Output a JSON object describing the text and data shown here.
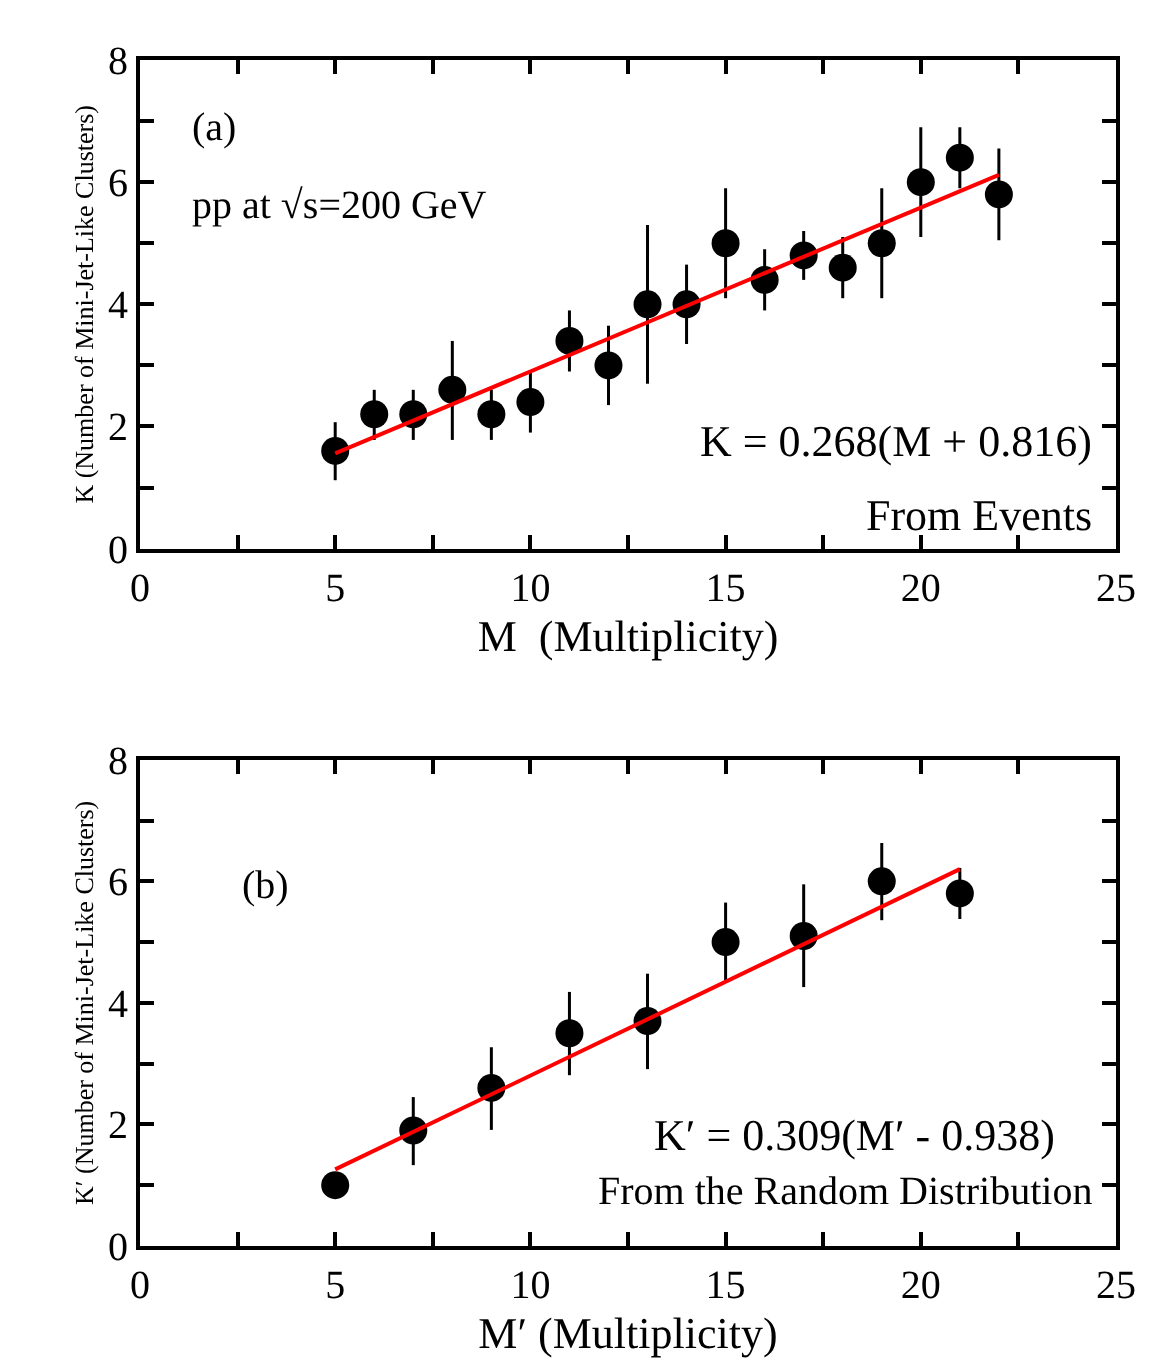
{
  "chart_data": [
    {
      "type": "scatter",
      "xlabel": "M  (Multiplicity)",
      "ylabel": "K (Number of Mini-Jet-Like Clusters)",
      "annotations": [
        "(a)",
        "pp at √s=200 GeV",
        "K = 0.268(M + 0.816)",
        "From Events"
      ],
      "xlim": [
        0,
        25
      ],
      "xticks": [
        0,
        {
          "value": 2.5,
          "label": null
        },
        5,
        {
          "value": 7.5,
          "label": null
        },
        10,
        {
          "value": 12.5,
          "label": null
        },
        15,
        {
          "value": 17.5,
          "label": null
        },
        20,
        {
          "value": 22.5,
          "label": null
        },
        25
      ],
      "ylim": [
        0,
        8
      ],
      "yticks": [
        0,
        {
          "value": 1,
          "label": null
        },
        2,
        {
          "value": 3,
          "label": null
        },
        4,
        {
          "value": 5,
          "label": null
        },
        6,
        {
          "value": 7,
          "label": null
        },
        8
      ],
      "marker": "circle",
      "series": [
        {
          "color": "#000000",
          "x": [
            5,
            6,
            7,
            8,
            9,
            10,
            11,
            12,
            13,
            14,
            15,
            16,
            17,
            18,
            19,
            20,
            21,
            22
          ],
          "values": [
            1.6,
            2.2,
            2.2,
            2.6,
            2.2,
            2.4,
            3.4,
            3.0,
            4.0,
            4.0,
            5.0,
            4.4,
            4.8,
            4.6,
            5.0,
            6.0,
            6.4,
            5.8
          ],
          "errors": [
            [
              1.12,
              2.07
            ],
            [
              1.78,
              2.6
            ],
            [
              1.78,
              2.6
            ],
            [
              1.78,
              3.4
            ],
            [
              1.78,
              2.6
            ],
            [
              1.9,
              2.9
            ],
            [
              2.9,
              3.9
            ],
            [
              2.35,
              3.65
            ],
            [
              2.7,
              5.3
            ],
            [
              3.35,
              4.65
            ],
            [
              4.1,
              5.9
            ],
            [
              3.9,
              4.9
            ],
            [
              4.4,
              5.2
            ],
            [
              4.1,
              5.1
            ],
            [
              4.1,
              5.9
            ],
            [
              5.1,
              6.9
            ],
            [
              5.9,
              6.9
            ],
            [
              5.05,
              6.55
            ]
          ]
        },
        {
          "type": "line",
          "color": "#ff0000",
          "marker": "none",
          "line_style": "solid",
          "x": [
            5,
            22
          ],
          "values": [
            1.56,
            6.12
          ]
        }
      ]
    },
    {
      "type": "scatter",
      "xlabel": "M′ (Multiplicity)",
      "ylabel": "K′ (Number of Mini-Jet-Like Clusters)",
      "annotations": [
        "(b)",
        "K′ = 0.309(M′ - 0.938)",
        "From the Random Distribution"
      ],
      "xlim": [
        0,
        25
      ],
      "xticks": [
        0,
        {
          "value": 2.5,
          "label": null
        },
        5,
        {
          "value": 7.5,
          "label": null
        },
        10,
        {
          "value": 12.5,
          "label": null
        },
        15,
        {
          "value": 17.5,
          "label": null
        },
        20,
        {
          "value": 22.5,
          "label": null
        },
        25
      ],
      "ylim": [
        0,
        8
      ],
      "yticks": [
        0,
        {
          "value": 1,
          "label": null
        },
        2,
        {
          "value": 3,
          "label": null
        },
        4,
        {
          "value": 5,
          "label": null
        },
        6,
        {
          "value": 7,
          "label": null
        },
        8
      ],
      "marker": "circle",
      "series": [
        {
          "color": "#000000",
          "x": [
            5,
            7,
            9,
            11,
            13,
            15,
            17,
            19,
            21
          ],
          "values": [
            1.0,
            1.9,
            2.6,
            3.5,
            3.7,
            5.0,
            5.1,
            6.0,
            5.8
          ],
          "errors": [
            null,
            [
              1.33,
              2.45
            ],
            [
              1.91,
              3.27
            ],
            [
              2.81,
              4.18
            ],
            [
              2.91,
              4.48
            ],
            [
              4.36,
              5.65
            ],
            [
              4.26,
              5.95
            ],
            [
              5.36,
              6.63
            ],
            [
              5.38,
              6.22
            ]
          ]
        },
        {
          "type": "line",
          "color": "#ff0000",
          "marker": "none",
          "line_style": "solid",
          "x": [
            5,
            21
          ],
          "values": [
            1.26,
            6.2
          ]
        }
      ]
    }
  ]
}
